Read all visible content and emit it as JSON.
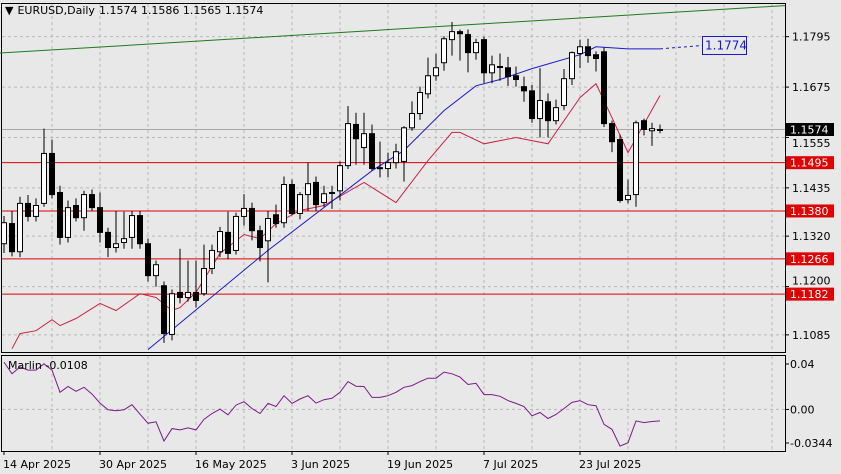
{
  "header": {
    "menu_icon": "triangle-down-icon",
    "symbol_timeframe": "EURUSD,Daily",
    "ohlc": "1.1574 1.1586 1.1565 1.1574"
  },
  "indicator_label": {
    "name": "Marlin",
    "value": "-0.0108"
  },
  "colors": {
    "background": "#e8e8e8",
    "bull_body": "#ffffff",
    "bear_body": "#000000",
    "fast_ma": "#cc2244",
    "slow_ma": "#1a1acc",
    "trendline": "#1e7a1e",
    "level_lines": "#e00000",
    "marlin": "#7a1a8a",
    "current_price_bg": "#000000"
  },
  "chart_data": [
    {
      "type": "candlestick",
      "title": "EURUSD,Daily",
      "grid": true,
      "ylim": [
        1.1043,
        1.1874
      ],
      "yticks": [
        "1.1795",
        "1.1675",
        "1.1555",
        "1.1435",
        "1.1320",
        "1.1200",
        "1.1085"
      ],
      "xticks": [
        {
          "date": "2025-04-14",
          "label": "14 Apr 2025"
        },
        {
          "date": "2025-04-30",
          "label": "30 Apr 2025"
        },
        {
          "date": "2025-05-16",
          "label": "16 May 2025"
        },
        {
          "date": "2025-06-03",
          "label": "3 Jun 2025"
        },
        {
          "date": "2025-06-19",
          "label": "19 Jun 2025"
        },
        {
          "date": "2025-07-07",
          "label": "7 Jul 2025"
        },
        {
          "date": "2025-07-23",
          "label": "23 Jul 2025"
        }
      ],
      "candles_format": [
        "date",
        "open",
        "high",
        "low",
        "close"
      ],
      "candles": [
        [
          "2025-04-14",
          1.1302,
          1.1368,
          1.128,
          1.1352
        ],
        [
          "2025-04-15",
          1.135,
          1.138,
          1.1272,
          1.1283
        ],
        [
          "2025-04-16",
          1.1283,
          1.1414,
          1.127,
          1.1398
        ],
        [
          "2025-04-17",
          1.1398,
          1.1418,
          1.1355,
          1.1367
        ],
        [
          "2025-04-18",
          1.1367,
          1.141,
          1.1355,
          1.1393
        ],
        [
          "2025-04-21",
          1.1398,
          1.1576,
          1.139,
          1.1517
        ],
        [
          "2025-04-22",
          1.1517,
          1.155,
          1.141,
          1.1419
        ],
        [
          "2025-04-23",
          1.1424,
          1.144,
          1.13,
          1.1317
        ],
        [
          "2025-04-24",
          1.1317,
          1.1405,
          1.1305,
          1.1388
        ],
        [
          "2025-04-25",
          1.1393,
          1.141,
          1.1355,
          1.1364
        ],
        [
          "2025-04-28",
          1.1364,
          1.1428,
          1.1333,
          1.1419
        ],
        [
          "2025-04-29",
          1.1419,
          1.1431,
          1.138,
          1.1388
        ],
        [
          "2025-04-30",
          1.1388,
          1.1424,
          1.1305,
          1.1329
        ],
        [
          "2025-05-01",
          1.1329,
          1.134,
          1.127,
          1.1293
        ],
        [
          "2025-05-02",
          1.1293,
          1.138,
          1.1281,
          1.1302
        ],
        [
          "2025-05-05",
          1.1305,
          1.1378,
          1.129,
          1.1314
        ],
        [
          "2025-05-06",
          1.1317,
          1.138,
          1.129,
          1.1369
        ],
        [
          "2025-05-07",
          1.1369,
          1.138,
          1.129,
          1.1302
        ],
        [
          "2025-05-08",
          1.1302,
          1.1314,
          1.1212,
          1.1226
        ],
        [
          "2025-05-09",
          1.1226,
          1.1262,
          1.12,
          1.1252
        ],
        [
          "2025-05-12",
          1.1202,
          1.1212,
          1.1066,
          1.1088
        ],
        [
          "2025-05-13",
          1.1086,
          1.1193,
          1.1072,
          1.1183
        ],
        [
          "2025-05-14",
          1.1186,
          1.129,
          1.116,
          1.1174
        ],
        [
          "2025-05-15",
          1.1174,
          1.1262,
          1.1164,
          1.1186
        ],
        [
          "2025-05-16",
          1.1186,
          1.1262,
          1.115,
          1.1167
        ],
        [
          "2025-05-19",
          1.1183,
          1.13,
          1.1178,
          1.1243
        ],
        [
          "2025-05-20",
          1.1243,
          1.13,
          1.123,
          1.1286
        ],
        [
          "2025-05-21",
          1.1283,
          1.1342,
          1.127,
          1.1331
        ],
        [
          "2025-05-22",
          1.1329,
          1.1378,
          1.1265,
          1.1279
        ],
        [
          "2025-05-23",
          1.1286,
          1.1376,
          1.1276,
          1.1367
        ],
        [
          "2025-05-26",
          1.1367,
          1.142,
          1.1345,
          1.1386
        ],
        [
          "2025-05-27",
          1.1386,
          1.14,
          1.131,
          1.1333
        ],
        [
          "2025-05-28",
          1.1333,
          1.1345,
          1.126,
          1.1293
        ],
        [
          "2025-05-29",
          1.1309,
          1.138,
          1.121,
          1.1362
        ],
        [
          "2025-05-30",
          1.1371,
          1.1395,
          1.134,
          1.135
        ],
        [
          "2025-06-02",
          1.1352,
          1.1462,
          1.134,
          1.1443
        ],
        [
          "2025-06-03",
          1.1443,
          1.1455,
          1.137,
          1.1374
        ],
        [
          "2025-06-04",
          1.1374,
          1.1425,
          1.136,
          1.1419
        ],
        [
          "2025-06-05",
          1.1419,
          1.1495,
          1.138,
          1.1445
        ],
        [
          "2025-06-06",
          1.1448,
          1.1462,
          1.138,
          1.1395
        ],
        [
          "2025-06-09",
          1.14,
          1.144,
          1.139,
          1.1421
        ],
        [
          "2025-06-10",
          1.1424,
          1.144,
          1.1385,
          1.1424
        ],
        [
          "2025-06-11",
          1.1428,
          1.1498,
          1.1405,
          1.1488
        ],
        [
          "2025-06-12",
          1.1488,
          1.163,
          1.148,
          1.1588
        ],
        [
          "2025-06-13",
          1.1586,
          1.1614,
          1.149,
          1.1552
        ],
        [
          "2025-06-16",
          1.1531,
          1.1614,
          1.149,
          1.1564
        ],
        [
          "2025-06-17",
          1.1564,
          1.1586,
          1.1476,
          1.1481
        ],
        [
          "2025-06-18",
          1.1483,
          1.1545,
          1.146,
          1.1481
        ],
        [
          "2025-06-19",
          1.1481,
          1.1519,
          1.146,
          1.1495
        ],
        [
          "2025-06-20",
          1.1495,
          1.154,
          1.1481,
          1.1521
        ],
        [
          "2025-06-23",
          1.1498,
          1.1582,
          1.145,
          1.1578
        ],
        [
          "2025-06-24",
          1.1578,
          1.1641,
          1.1571,
          1.1612
        ],
        [
          "2025-06-25",
          1.1612,
          1.1676,
          1.1597,
          1.1662
        ],
        [
          "2025-06-26",
          1.1659,
          1.1745,
          1.1648,
          1.1702
        ],
        [
          "2025-06-27",
          1.1702,
          1.1754,
          1.169,
          1.1721
        ],
        [
          "2025-06-30",
          1.1733,
          1.1796,
          1.1714,
          1.179
        ],
        [
          "2025-07-01",
          1.1788,
          1.183,
          1.175,
          1.1807
        ],
        [
          "2025-07-02",
          1.1807,
          1.1812,
          1.1738,
          1.1802
        ],
        [
          "2025-07-03",
          1.18,
          1.1812,
          1.171,
          1.1757
        ],
        [
          "2025-07-04",
          1.1757,
          1.179,
          1.174,
          1.1781
        ],
        [
          "2025-07-07",
          1.1788,
          1.1795,
          1.1685,
          1.1709
        ],
        [
          "2025-07-08",
          1.1709,
          1.175,
          1.1684,
          1.1728
        ],
        [
          "2025-07-09",
          1.1724,
          1.1755,
          1.169,
          1.1724
        ],
        [
          "2025-07-10",
          1.1721,
          1.1747,
          1.1678,
          1.17
        ],
        [
          "2025-07-11",
          1.1702,
          1.1724,
          1.1676,
          1.1693
        ],
        [
          "2025-07-14",
          1.1676,
          1.17,
          1.164,
          1.1666
        ],
        [
          "2025-07-15",
          1.1666,
          1.168,
          1.159,
          1.16
        ],
        [
          "2025-07-16",
          1.16,
          1.172,
          1.1555,
          1.1643
        ],
        [
          "2025-07-17",
          1.164,
          1.166,
          1.1555,
          1.1595
        ],
        [
          "2025-07-18",
          1.1595,
          1.1645,
          1.1586,
          1.1626
        ],
        [
          "2025-07-21",
          1.1631,
          1.1718,
          1.162,
          1.1695
        ],
        [
          "2025-07-22",
          1.1695,
          1.176,
          1.168,
          1.1757
        ],
        [
          "2025-07-23",
          1.1755,
          1.1788,
          1.172,
          1.1771
        ],
        [
          "2025-07-24",
          1.1771,
          1.179,
          1.1733,
          1.175
        ],
        [
          "2025-07-25",
          1.1752,
          1.176,
          1.1712,
          1.1743
        ],
        [
          "2025-07-28",
          1.1759,
          1.1769,
          1.158,
          1.1588
        ],
        [
          "2025-07-29",
          1.1588,
          1.1595,
          1.152,
          1.1545
        ],
        [
          "2025-07-30",
          1.155,
          1.1562,
          1.14,
          1.1405
        ],
        [
          "2025-07-31",
          1.1407,
          1.1455,
          1.1398,
          1.1417
        ],
        [
          "2025-08-01",
          1.1419,
          1.1595,
          1.139,
          1.159
        ],
        [
          "2025-08-04",
          1.1595,
          1.16,
          1.156,
          1.1574
        ],
        [
          "2025-08-05",
          1.1571,
          1.159,
          1.1535,
          1.1576
        ],
        [
          "2025-08-06",
          1.1574,
          1.1586,
          1.1565,
          1.1574
        ]
      ],
      "fast_ma": [
        [
          "2025-04-15",
          1.1052
        ],
        [
          "2025-04-16",
          1.1088
        ],
        [
          "2025-04-18",
          1.1095
        ],
        [
          "2025-04-22",
          1.1121
        ],
        [
          "2025-04-23",
          1.1107
        ],
        [
          "2025-04-25",
          1.1124
        ],
        [
          "2025-04-30",
          1.116
        ],
        [
          "2025-05-02",
          1.1143
        ],
        [
          "2025-05-07",
          1.1183
        ],
        [
          "2025-05-09",
          1.1174
        ],
        [
          "2025-05-13",
          1.1143
        ],
        [
          "2025-05-14",
          1.115
        ],
        [
          "2025-05-16",
          1.1186
        ],
        [
          "2025-05-21",
          1.1279
        ],
        [
          "2025-05-26",
          1.1324
        ],
        [
          "2025-05-28",
          1.1314
        ],
        [
          "2025-05-30",
          1.135
        ],
        [
          "2025-06-04",
          1.1381
        ],
        [
          "2025-06-09",
          1.1393
        ],
        [
          "2025-06-16",
          1.1448
        ],
        [
          "2025-06-20",
          1.14
        ],
        [
          "2025-06-26",
          1.15
        ],
        [
          "2025-07-01",
          1.1567
        ],
        [
          "2025-07-02",
          1.1567
        ],
        [
          "2025-07-07",
          1.154
        ],
        [
          "2025-07-11",
          1.1555
        ],
        [
          "2025-07-17",
          1.154
        ],
        [
          "2025-07-23",
          1.165
        ],
        [
          "2025-07-25",
          1.1683
        ],
        [
          "2025-07-29",
          1.1602
        ],
        [
          "2025-07-31",
          1.1519
        ],
        [
          "2025-08-06",
          1.1655
        ]
      ],
      "slow_ma": [
        [
          "2025-05-08",
          1.105
        ],
        [
          "2025-05-29",
          1.1286
        ],
        [
          "2025-06-17",
          1.1476
        ],
        [
          "2025-06-23",
          1.1524
        ],
        [
          "2025-06-30",
          1.1619
        ],
        [
          "2025-07-04",
          1.1678
        ],
        [
          "2025-07-09",
          1.1693
        ],
        [
          "2025-07-15",
          1.1719
        ],
        [
          "2025-07-23",
          1.1752
        ],
        [
          "2025-07-25",
          1.1771
        ],
        [
          "2025-07-31",
          1.1766
        ],
        [
          "2025-08-06",
          1.1766
        ]
      ],
      "slow_ma_projection_label": "1.1774",
      "trendline": {
        "start": [
          "2025-04-14",
          1.1756
        ],
        "price_at_right_edge": 1.1869
      },
      "levels": [
        "1.1495",
        "1.1380",
        "1.1266",
        "1.1182"
      ],
      "current_price": "1.1574"
    },
    {
      "type": "line",
      "name": "Marlin",
      "ylim": [
        -0.0397,
        0.0509
      ],
      "yticks": [
        "0.04",
        "0.00",
        "-0.0344"
      ],
      "values": [
        0.0447,
        0.0336,
        0.04,
        0.0371,
        0.0371,
        0.0431,
        0.0371,
        0.0162,
        0.0216,
        0.0171,
        0.0209,
        0.0145,
        0.006,
        -0.0003,
        -0.0013,
        -0.0003,
        0.0045,
        -0.0045,
        -0.0131,
        -0.0117,
        -0.0298,
        -0.0181,
        -0.0193,
        -0.0174,
        -0.0193,
        -0.0093,
        -0.0038,
        0.0003,
        -0.0051,
        0.0041,
        0.0073,
        0.0009,
        -0.0038,
        0.0057,
        0.0028,
        0.013,
        0.0057,
        0.0098,
        0.013,
        0.006,
        0.0092,
        0.0105,
        0.0162,
        0.0263,
        0.0219,
        0.0216,
        0.0114,
        0.0114,
        0.013,
        0.0162,
        0.0209,
        0.0225,
        0.0263,
        0.0295,
        0.0295,
        0.0352,
        0.0336,
        0.0305,
        0.0235,
        0.0247,
        0.014,
        0.014,
        0.0124,
        0.0083,
        0.0057,
        0.0028,
        -0.006,
        -0.0029,
        -0.0086,
        -0.0048,
        0.0009,
        0.0066,
        0.0083,
        0.0045,
        0.0035,
        -0.014,
        -0.0188,
        -0.0346,
        -0.0314,
        -0.0108,
        -0.0124,
        -0.0114,
        -0.0108
      ]
    }
  ]
}
